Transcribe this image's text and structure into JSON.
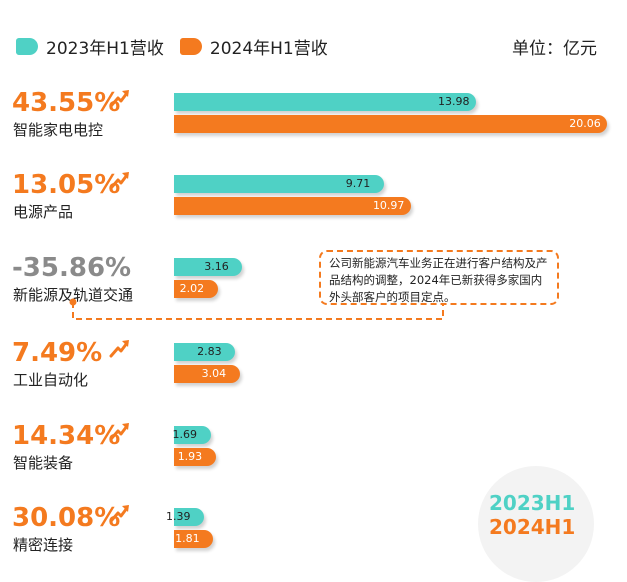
{
  "legend": {
    "series_2023": "2023年H1营收",
    "series_2024": "2024年H1营收",
    "unit": "单位：亿元"
  },
  "colors": {
    "teal": "#4fd1c5",
    "orange": "#f47a1f",
    "gray": "#8a8a8a"
  },
  "note": {
    "text": "公司新能源汽车业务正在进行客户结构及产品结构的调整，2024年已新获得多家国内外头部客户的项目定点。"
  },
  "badge": {
    "line1": "2023H1",
    "line2": "2024H1"
  },
  "chart_data": {
    "type": "bar",
    "orientation": "horizontal",
    "categories": [
      "智能家电电控",
      "电源产品",
      "新能源及轨道交通",
      "工业自动化",
      "智能装备",
      "精密连接"
    ],
    "growth": [
      "43.55%",
      "13.05%",
      "-35.86%",
      "7.49%",
      "14.34%",
      "30.08%"
    ],
    "trend_icon": [
      "trend-up-icon",
      "trend-up-icon",
      "none",
      "trend-up-icon",
      "trend-up-icon",
      "trend-up-icon"
    ],
    "series": [
      {
        "name": "2023年H1营收",
        "values": [
          13.98,
          9.71,
          3.16,
          2.83,
          1.69,
          1.39
        ]
      },
      {
        "name": "2024年H1营收",
        "values": [
          20.06,
          10.97,
          2.02,
          3.04,
          1.93,
          1.81
        ]
      }
    ],
    "value_labels": [
      [
        "13.98",
        "9.71",
        "3.16",
        "2.83",
        "1.69",
        "1.39"
      ],
      [
        "20.06",
        "10.97",
        "2.02",
        "3.04",
        "1.93",
        "1.81"
      ]
    ],
    "unit": "亿元",
    "xlim": [
      0,
      21
    ]
  }
}
